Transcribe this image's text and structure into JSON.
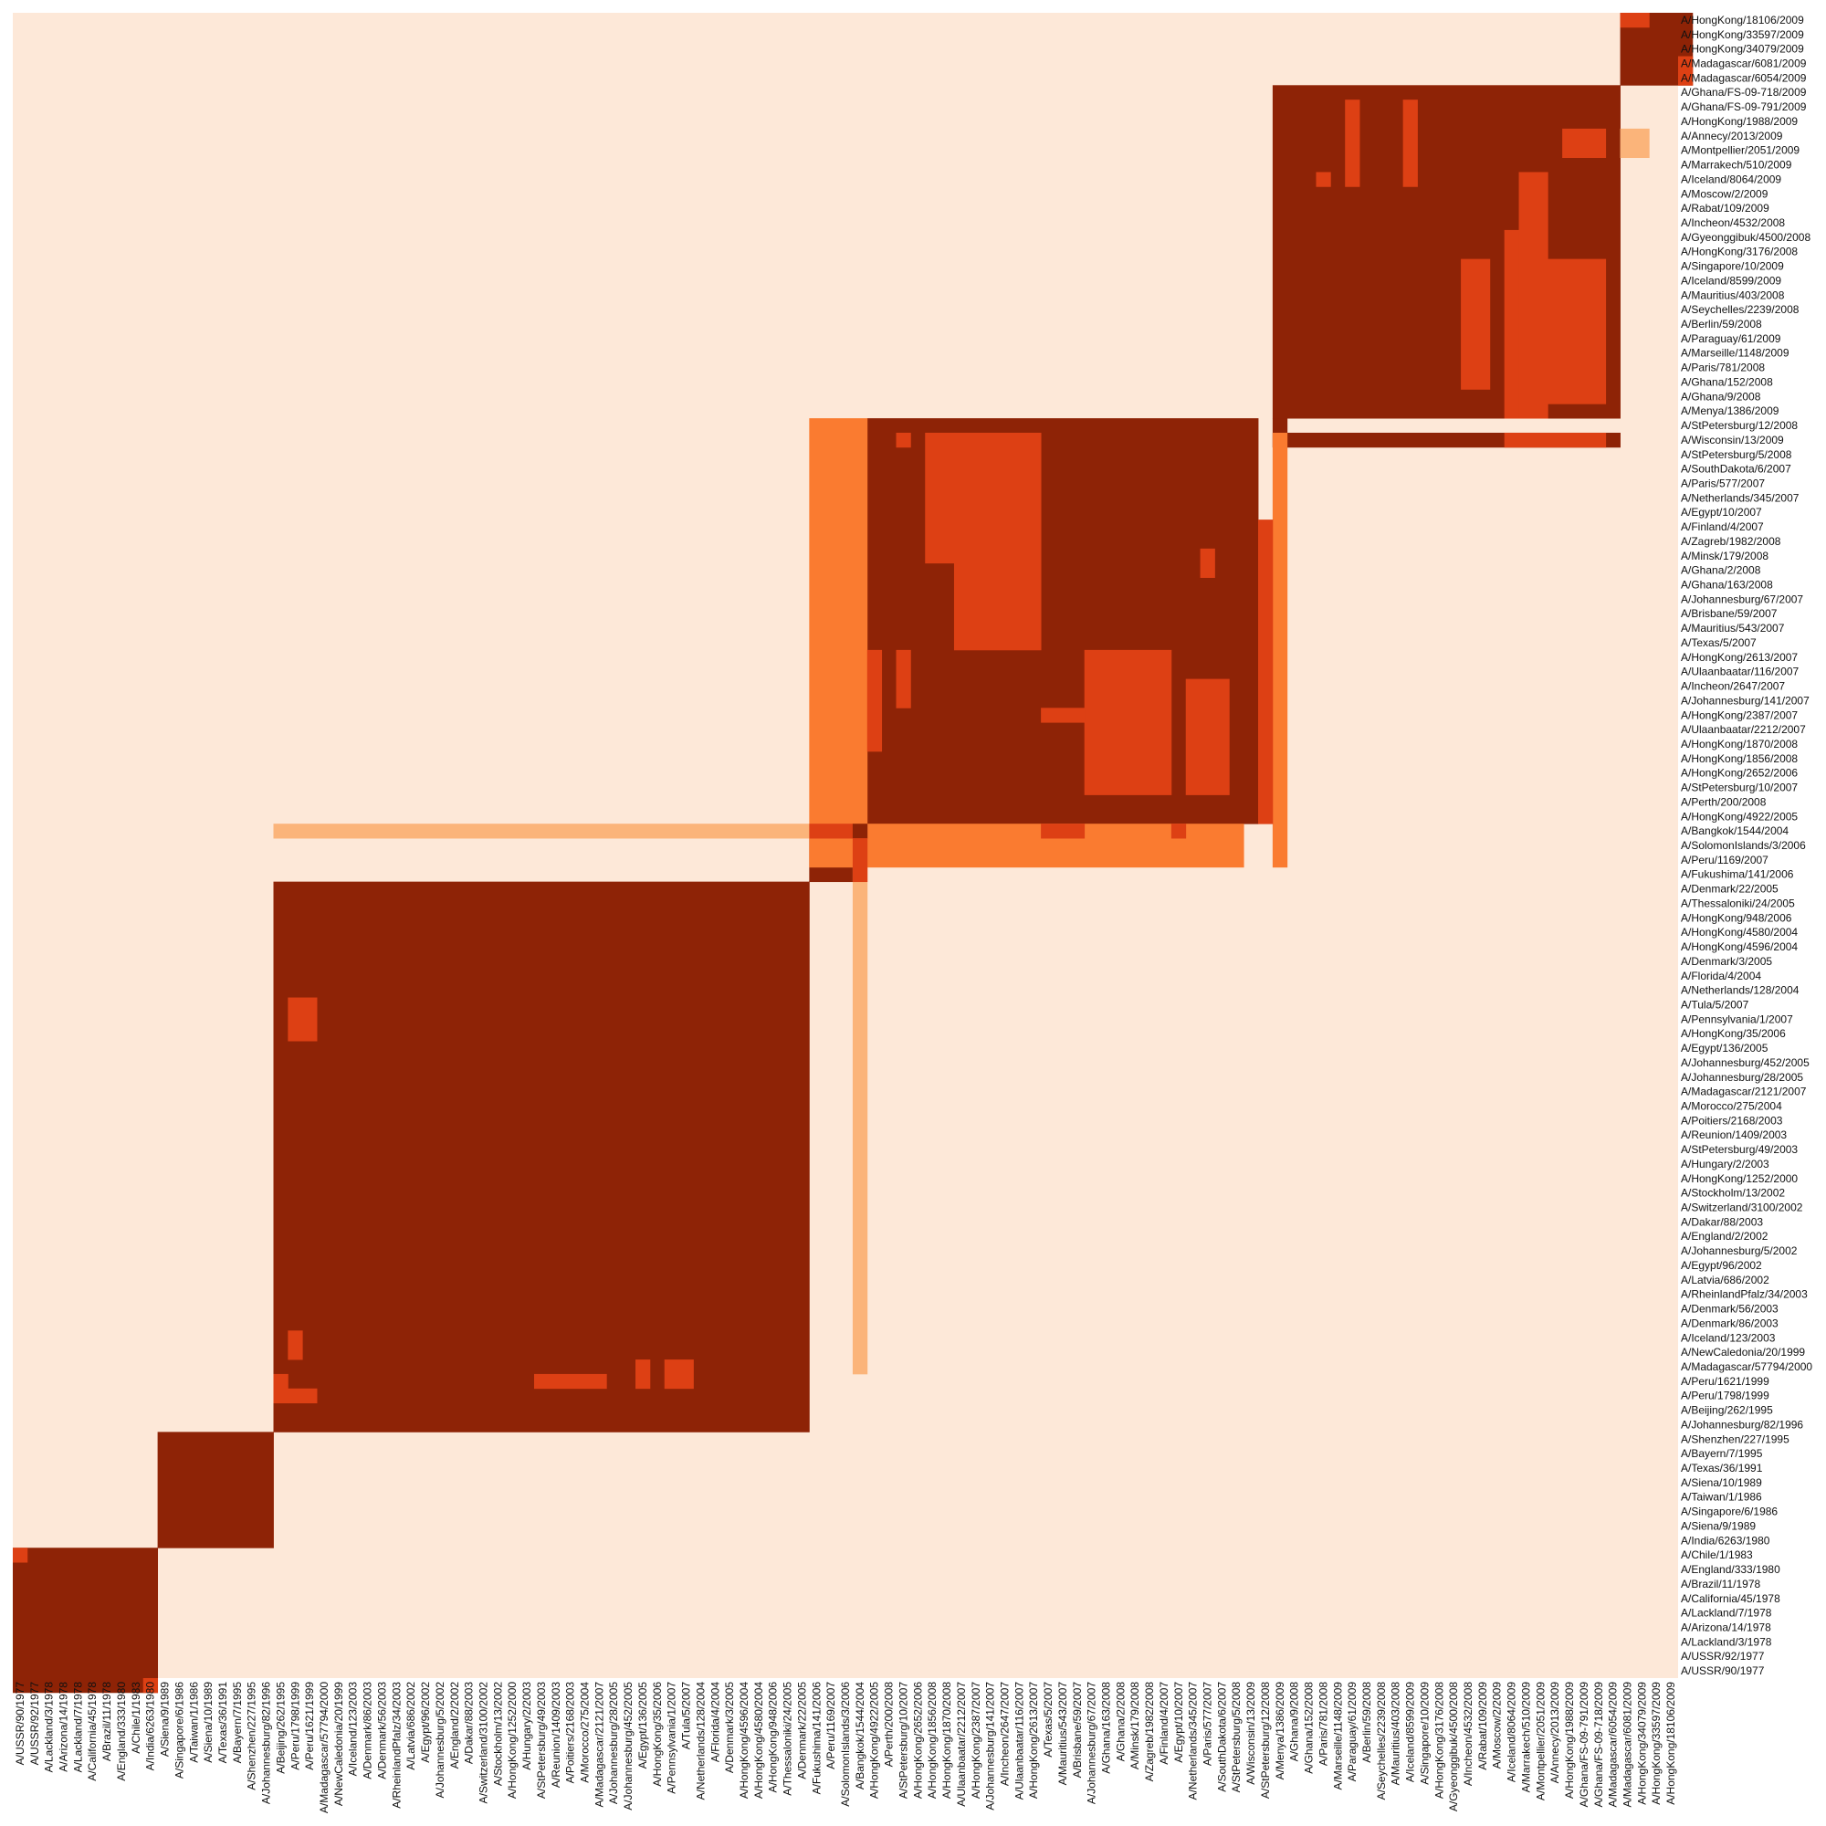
{
  "chart_data": {
    "type": "heatmap",
    "title": "",
    "xlabel": "",
    "ylabel": "",
    "colors": {
      "background": "#fde8d8",
      "light": "#fbb47a",
      "orange": "#fa7b30",
      "red": "#dd4014",
      "dark": "#8e2306"
    },
    "x_labels": [
      "A/USSR/90/1977",
      "A/USSR/92/1977",
      "A/Lackland/3/1978",
      "A/Arizona/14/1978",
      "A/Lackland/7/1978",
      "A/California/45/1978",
      "A/Brazil/11/1978",
      "A/England/333/1980",
      "A/Chile/1/1983",
      "A/India/6263/1980",
      "A/Siena/9/1989",
      "A/Singapore/6/1986",
      "A/Taiwan/1/1986",
      "A/Siena/10/1989",
      "A/Texas/36/1991",
      "A/Bayern/7/1995",
      "A/Shenzhen/227/1995",
      "A/Johannesburg/82/1996",
      "A/Beijing/262/1995",
      "A/Peru/1798/1999",
      "A/Peru/1621/1999",
      "A/Madagascar/57794/2000",
      "A/NewCaledonia/20/1999",
      "A/Iceland/123/2003",
      "A/Denmark/86/2003",
      "A/Denmark/56/2003",
      "A/RheinlandPfalz/34/2003",
      "A/Latvia/686/2002",
      "A/Egypt/96/2002",
      "A/Johannesburg/5/2002",
      "A/England/2/2002",
      "A/Dakar/88/2003",
      "A/Switzerland/3100/2002",
      "A/Stockholm/13/2002",
      "A/HongKong/1252/2000",
      "A/Hungary/2/2003",
      "A/StPetersburg/49/2003",
      "A/Reunion/1409/2003",
      "A/Poitiers/2168/2003",
      "A/Morocco/275/2004",
      "A/Madagascar/2121/2007",
      "A/Johannesburg/28/2005",
      "A/Johannesburg/452/2005",
      "A/Egypt/136/2005",
      "A/HongKong/35/2006",
      "A/Pennsylvania/1/2007",
      "A/Tula/5/2007",
      "A/Netherlands/128/2004",
      "A/Florida/4/2004",
      "A/Denmark/3/2005",
      "A/HongKong/4596/2004",
      "A/HongKong/4580/2004",
      "A/HongKong/948/2006",
      "A/Thessaloniki/24/2005",
      "A/Denmark/22/2005",
      "A/Fukushima/141/2006",
      "A/Peru/1169/2007",
      "A/SolomonIslands/3/2006",
      "A/Bangkok/1544/2004",
      "A/HongKong/4922/2005",
      "A/Perth/200/2008",
      "A/StPetersburg/10/2007",
      "A/HongKong/2652/2006",
      "A/HongKong/1856/2008",
      "A/HongKong/1870/2008",
      "A/Ulaanbaatar/2212/2007",
      "A/HongKong/2387/2007",
      "A/Johannesburg/141/2007",
      "A/Incheon/2647/2007",
      "A/Ulaanbaatar/116/2007",
      "A/HongKong/2613/2007",
      "A/Texas/5/2007",
      "A/Mauritius/543/2007",
      "A/Brisbane/59/2007",
      "A/Johannesburg/67/2007",
      "A/Ghana/163/2008",
      "A/Ghana/2/2008",
      "A/Minsk/179/2008",
      "A/Zagreb/1982/2008",
      "A/Finland/4/2007",
      "A/Egypt/10/2007",
      "A/Netherlands/345/2007",
      "A/Paris/577/2007",
      "A/SouthDakota/6/2007",
      "A/StPetersburg/5/2008",
      "A/Wisconsin/13/2009",
      "A/StPetersburg/12/2008",
      "A/Menya/1386/2009",
      "A/Ghana/9/2008",
      "A/Ghana/152/2008",
      "A/Paris/781/2008",
      "A/Marseille/1148/2009",
      "A/Paraguay/61/2009",
      "A/Berlin/59/2008",
      "A/Seychelles/2239/2008",
      "A/Mauritius/403/2008",
      "A/Iceland/8599/2009",
      "A/Singapore/10/2009",
      "A/HongKong/3176/2008",
      "A/Gyeonggibuk/4500/2008",
      "A/Incheon/4532/2008",
      "A/Rabat/109/2009",
      "A/Moscow/2/2009",
      "A/Iceland/8064/2009",
      "A/Marrakech/510/2009",
      "A/Montpellier/2051/2009",
      "A/Annecy/2013/2009",
      "A/HongKong/1988/2009",
      "A/Ghana/FS-09-791/2009",
      "A/Ghana/FS-09-718/2009",
      "A/Madagascar/6054/2009",
      "A/Madagascar/6081/2009",
      "A/HongKong/34079/2009",
      "A/HongKong/33597/2009",
      "A/HongKong/18106/2009"
    ],
    "y_labels": [
      "A/HongKong/18106/2009",
      "A/HongKong/33597/2009",
      "A/HongKong/34079/2009",
      "A/Madagascar/6081/2009",
      "A/Madagascar/6054/2009",
      "A/Ghana/FS-09-718/2009",
      "A/Ghana/FS-09-791/2009",
      "A/HongKong/1988/2009",
      "A/Annecy/2013/2009",
      "A/Montpellier/2051/2009",
      "A/Marrakech/510/2009",
      "A/Iceland/8064/2009",
      "A/Moscow/2/2009",
      "A/Rabat/109/2009",
      "A/Incheon/4532/2008",
      "A/Gyeonggibuk/4500/2008",
      "A/HongKong/3176/2008",
      "A/Singapore/10/2009",
      "A/Iceland/8599/2009",
      "A/Mauritius/403/2008",
      "A/Seychelles/2239/2008",
      "A/Berlin/59/2008",
      "A/Paraguay/61/2009",
      "A/Marseille/1148/2009",
      "A/Paris/781/2008",
      "A/Ghana/152/2008",
      "A/Ghana/9/2008",
      "A/Menya/1386/2009",
      "A/StPetersburg/12/2008",
      "A/Wisconsin/13/2009",
      "A/StPetersburg/5/2008",
      "A/SouthDakota/6/2007",
      "A/Paris/577/2007",
      "A/Netherlands/345/2007",
      "A/Egypt/10/2007",
      "A/Finland/4/2007",
      "A/Zagreb/1982/2008",
      "A/Minsk/179/2008",
      "A/Ghana/2/2008",
      "A/Ghana/163/2008",
      "A/Johannesburg/67/2007",
      "A/Brisbane/59/2007",
      "A/Mauritius/543/2007",
      "A/Texas/5/2007",
      "A/HongKong/2613/2007",
      "A/Ulaanbaatar/116/2007",
      "A/Incheon/2647/2007",
      "A/Johannesburg/141/2007",
      "A/HongKong/2387/2007",
      "A/Ulaanbaatar/2212/2007",
      "A/HongKong/1870/2008",
      "A/HongKong/1856/2008",
      "A/HongKong/2652/2006",
      "A/StPetersburg/10/2007",
      "A/Perth/200/2008",
      "A/HongKong/4922/2005",
      "A/Bangkok/1544/2004",
      "A/SolomonIslands/3/2006",
      "A/Peru/1169/2007",
      "A/Fukushima/141/2006",
      "A/Denmark/22/2005",
      "A/Thessaloniki/24/2005",
      "A/HongKong/948/2006",
      "A/HongKong/4580/2004",
      "A/HongKong/4596/2004",
      "A/Denmark/3/2005",
      "A/Florida/4/2004",
      "A/Netherlands/128/2004",
      "A/Tula/5/2007",
      "A/Pennsylvania/1/2007",
      "A/HongKong/35/2006",
      "A/Egypt/136/2005",
      "A/Johannesburg/452/2005",
      "A/Johannesburg/28/2005",
      "A/Madagascar/2121/2007",
      "A/Morocco/275/2004",
      "A/Poitiers/2168/2003",
      "A/Reunion/1409/2003",
      "A/StPetersburg/49/2003",
      "A/Hungary/2/2003",
      "A/HongKong/1252/2000",
      "A/Stockholm/13/2002",
      "A/Switzerland/3100/2002",
      "A/Dakar/88/2003",
      "A/England/2/2002",
      "A/Johannesburg/5/2002",
      "A/Egypt/96/2002",
      "A/Latvia/686/2002",
      "A/RheinlandPfalz/34/2003",
      "A/Denmark/56/2003",
      "A/Denmark/86/2003",
      "A/Iceland/123/2003",
      "A/NewCaledonia/20/1999",
      "A/Madagascar/57794/2000",
      "A/Peru/1621/1999",
      "A/Peru/1798/1999",
      "A/Beijing/262/1995",
      "A/Johannesburg/82/1996",
      "A/Shenzhen/227/1995",
      "A/Bayern/7/1995",
      "A/Texas/36/1991",
      "A/Siena/10/1989",
      "A/Taiwan/1/1986",
      "A/Singapore/6/1986",
      "A/Siena/9/1989",
      "A/India/6263/1980",
      "A/Chile/1/1983",
      "A/England/333/1980",
      "A/Brazil/11/1978",
      "A/California/45/1978",
      "A/Lackland/7/1978",
      "A/Arizona/14/1978",
      "A/Lackland/3/1978",
      "A/USSR/92/1977",
      "A/USSR/90/1977"
    ],
    "blocks": [
      {
        "color": "dark",
        "rows": [
          106,
          115
        ],
        "cols": [
          0,
          9
        ]
      },
      {
        "color": "dark",
        "rows": [
          98,
          105
        ],
        "cols": [
          10,
          17
        ]
      },
      {
        "color": "dark",
        "rows": [
          60,
          97
        ],
        "cols": [
          18,
          54
        ]
      },
      {
        "color": "dark",
        "rows": [
          28,
          55
        ],
        "cols": [
          59,
          85
        ]
      },
      {
        "color": "dark",
        "rows": [
          5,
          27
        ],
        "cols": [
          87,
          110
        ]
      },
      {
        "color": "dark",
        "rows": [
          0,
          4
        ],
        "cols": [
          111,
          115
        ]
      },
      {
        "color": "dark",
        "rows": [
          29,
          29
        ],
        "cols": [
          87,
          110
        ]
      },
      {
        "color": "dark",
        "rows": [
          57,
          59
        ],
        "cols": [
          55,
          57
        ]
      },
      {
        "color": "dark",
        "rows": [
          28,
          29
        ],
        "cols": [
          87,
          87
        ]
      },
      {
        "color": "orange",
        "rows": [
          28,
          58
        ],
        "cols": [
          55,
          58
        ]
      },
      {
        "color": "orange",
        "rows": [
          56,
          58
        ],
        "cols": [
          59,
          84
        ]
      },
      {
        "color": "orange",
        "rows": [
          29,
          58
        ],
        "cols": [
          87,
          87
        ]
      },
      {
        "color": "light",
        "rows": [
          56,
          56
        ],
        "cols": [
          18,
          54
        ]
      },
      {
        "color": "light",
        "rows": [
          59,
          93
        ],
        "cols": [
          58,
          58
        ]
      },
      {
        "color": "light",
        "rows": [
          8,
          9
        ],
        "cols": [
          111,
          112
        ]
      },
      {
        "color": "red",
        "rows": [
          56,
          56
        ],
        "cols": [
          55,
          57
        ]
      },
      {
        "color": "dark",
        "rows": [
          56,
          56
        ],
        "cols": [
          58,
          58
        ]
      },
      {
        "color": "red",
        "rows": [
          57,
          59
        ],
        "cols": [
          58,
          58
        ]
      },
      {
        "color": "red",
        "rows": [
          56,
          56
        ],
        "cols": [
          71,
          73
        ]
      },
      {
        "color": "red",
        "rows": [
          56,
          56
        ],
        "cols": [
          80,
          80
        ]
      },
      {
        "color": "red",
        "rows": [
          29,
          43
        ],
        "cols": [
          65,
          70
        ]
      },
      {
        "color": "red",
        "rows": [
          29,
          37
        ],
        "cols": [
          63,
          64
        ]
      },
      {
        "color": "red",
        "rows": [
          29,
          29
        ],
        "cols": [
          61,
          61
        ]
      },
      {
        "color": "red",
        "rows": [
          44,
          50
        ],
        "cols": [
          59,
          59
        ]
      },
      {
        "color": "red",
        "rows": [
          44,
          47
        ],
        "cols": [
          61,
          61
        ]
      },
      {
        "color": "red",
        "rows": [
          44,
          53
        ],
        "cols": [
          74,
          79
        ]
      },
      {
        "color": "red",
        "rows": [
          46,
          53
        ],
        "cols": [
          81,
          83
        ]
      },
      {
        "color": "red",
        "rows": [
          48,
          48
        ],
        "cols": [
          71,
          73
        ]
      },
      {
        "color": "red",
        "rows": [
          37,
          38
        ],
        "cols": [
          82,
          82
        ]
      },
      {
        "color": "red",
        "rows": [
          35,
          55
        ],
        "cols": [
          86,
          86
        ]
      },
      {
        "color": "red",
        "rows": [
          11,
          27
        ],
        "cols": [
          104,
          105
        ]
      },
      {
        "color": "red",
        "rows": [
          15,
          27
        ],
        "cols": [
          103,
          103
        ]
      },
      {
        "color": "red",
        "rows": [
          17,
          25
        ],
        "cols": [
          100,
          101
        ]
      },
      {
        "color": "red",
        "rows": [
          17,
          26
        ],
        "cols": [
          106,
          109
        ]
      },
      {
        "color": "red",
        "rows": [
          8,
          9
        ],
        "cols": [
          107,
          109
        ]
      },
      {
        "color": "red",
        "rows": [
          6,
          11
        ],
        "cols": [
          92,
          92
        ]
      },
      {
        "color": "red",
        "rows": [
          6,
          11
        ],
        "cols": [
          96,
          96
        ]
      },
      {
        "color": "red",
        "rows": [
          11,
          11
        ],
        "cols": [
          90,
          90
        ]
      },
      {
        "color": "red",
        "rows": [
          29,
          29
        ],
        "cols": [
          103,
          109
        ]
      },
      {
        "color": "red",
        "rows": [
          0,
          0
        ],
        "cols": [
          111,
          112
        ]
      },
      {
        "color": "red",
        "rows": [
          3,
          4
        ],
        "cols": [
          115,
          115
        ]
      },
      {
        "color": "red",
        "rows": [
          106,
          106
        ],
        "cols": [
          0,
          0
        ]
      },
      {
        "color": "red",
        "rows": [
          115,
          115
        ],
        "cols": [
          9,
          9
        ]
      },
      {
        "color": "red",
        "rows": [
          68,
          70
        ],
        "cols": [
          19,
          20
        ]
      },
      {
        "color": "red",
        "rows": [
          91,
          92
        ],
        "cols": [
          19,
          19
        ]
      },
      {
        "color": "red",
        "rows": [
          94,
          95
        ],
        "cols": [
          18,
          18
        ]
      },
      {
        "color": "red",
        "rows": [
          95,
          95
        ],
        "cols": [
          19,
          20
        ]
      },
      {
        "color": "red",
        "rows": [
          94,
          94
        ],
        "cols": [
          36,
          40
        ]
      },
      {
        "color": "red",
        "rows": [
          93,
          94
        ],
        "cols": [
          43,
          43
        ]
      },
      {
        "color": "red",
        "rows": [
          93,
          94
        ],
        "cols": [
          45,
          46
        ]
      }
    ]
  }
}
